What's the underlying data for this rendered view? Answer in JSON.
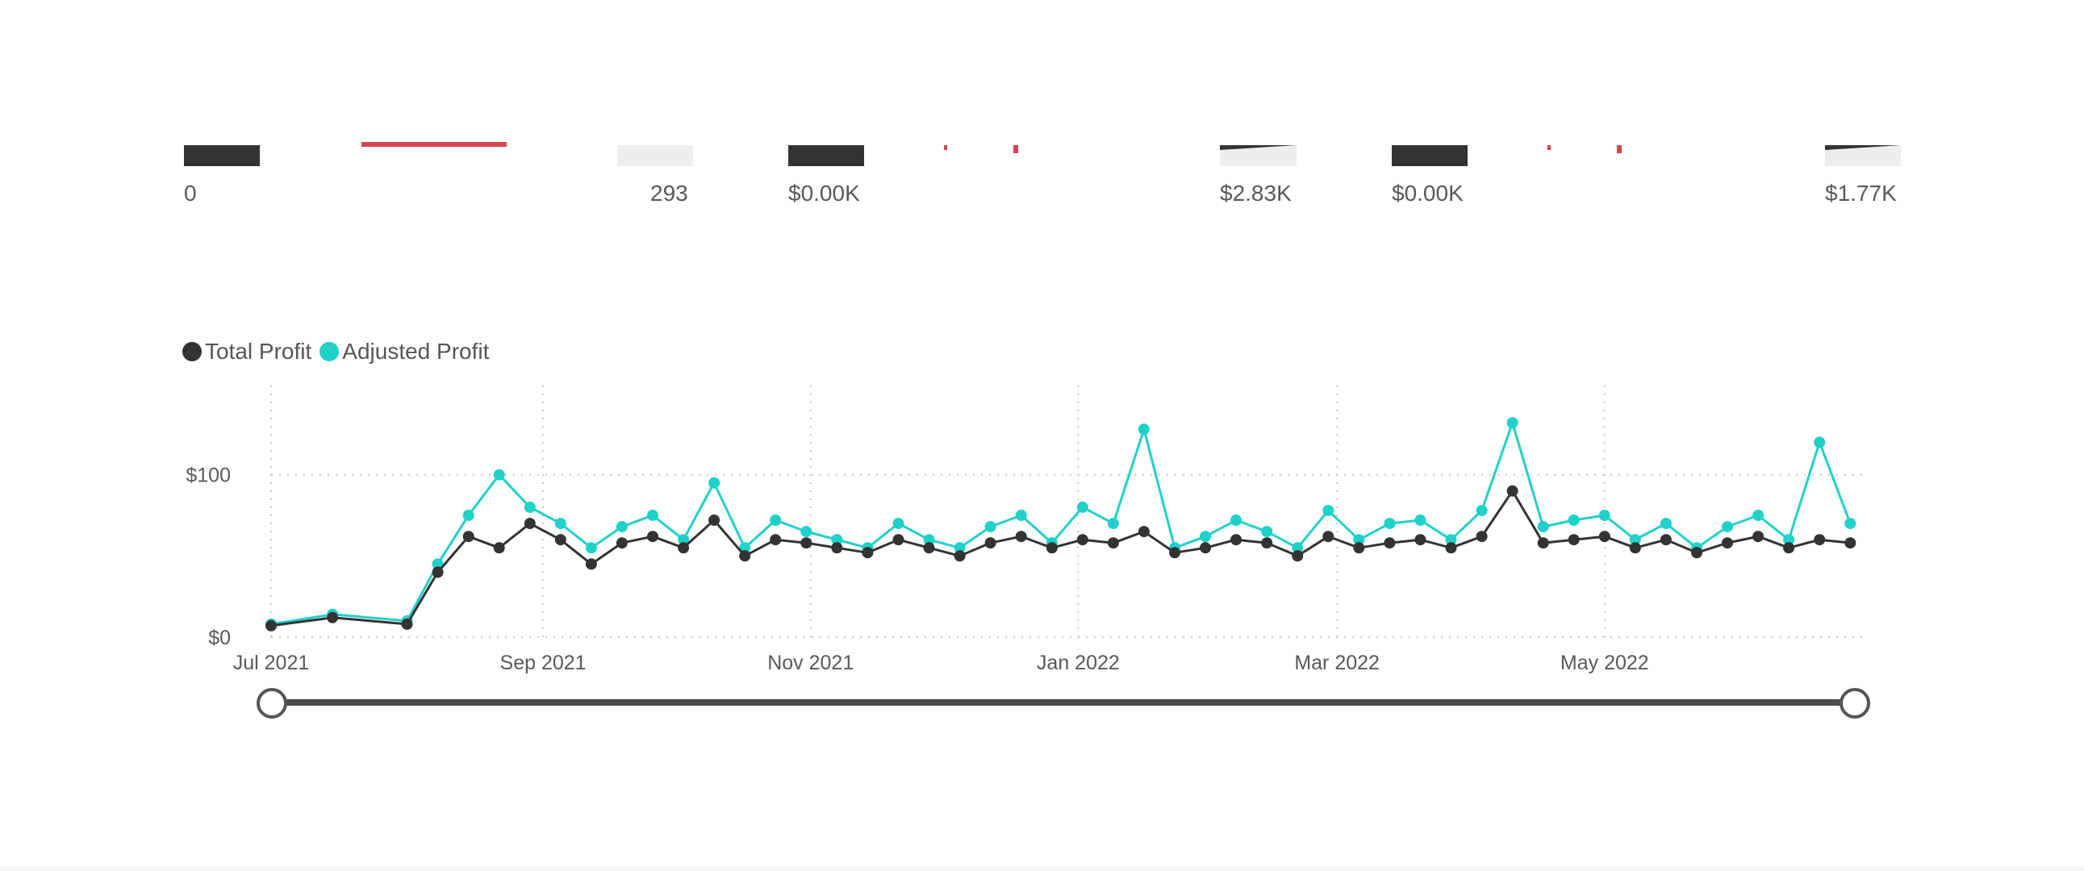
{
  "kpis": [
    {
      "label": "0"
    },
    {
      "label": "293"
    },
    {
      "label": "$0.00K"
    },
    {
      "label": "$2.83K"
    },
    {
      "label": "$0.00K"
    },
    {
      "label": "$1.77K"
    }
  ],
  "colors": {
    "total_profit": "#333333",
    "adjusted_profit": "#1fd1c8",
    "grid": "#c8c8c8",
    "accent_red": "#d64550"
  },
  "chart_data": {
    "type": "line",
    "markers": true,
    "legend_position": "top-left",
    "grid": "dotted",
    "title": "",
    "xlabel": "",
    "ylabel": "",
    "x_range": [
      "2021-07-01",
      "2022-06-30"
    ],
    "ylim": [
      0,
      150
    ],
    "x_ticks": [
      "Jul 2021",
      "Sep 2021",
      "Nov 2021",
      "Jan 2022",
      "Mar 2022",
      "May 2022"
    ],
    "x_tick_dates": [
      "2021-07-01",
      "2021-09-01",
      "2021-11-01",
      "2022-01-01",
      "2022-03-01",
      "2022-05-01"
    ],
    "y_ticks": [
      "$0",
      "$100"
    ],
    "y_tick_values": [
      0,
      100
    ],
    "series": [
      {
        "name": "Total Profit",
        "x": [
          "2021-07-01",
          "2021-07-15",
          "2021-08-01",
          "2021-08-08",
          "2021-08-15",
          "2021-08-22",
          "2021-08-29",
          "2021-09-05",
          "2021-09-12",
          "2021-09-19",
          "2021-09-26",
          "2021-10-03",
          "2021-10-10",
          "2021-10-17",
          "2021-10-24",
          "2021-10-31",
          "2021-11-07",
          "2021-11-14",
          "2021-11-21",
          "2021-11-28",
          "2021-12-05",
          "2021-12-12",
          "2021-12-19",
          "2021-12-26",
          "2022-01-02",
          "2022-01-09",
          "2022-01-16",
          "2022-01-23",
          "2022-01-30",
          "2022-02-06",
          "2022-02-13",
          "2022-02-20",
          "2022-02-27",
          "2022-03-06",
          "2022-03-13",
          "2022-03-20",
          "2022-03-27",
          "2022-04-03",
          "2022-04-10",
          "2022-04-17",
          "2022-04-24",
          "2022-05-01",
          "2022-05-08",
          "2022-05-15",
          "2022-05-22",
          "2022-05-29",
          "2022-06-05",
          "2022-06-12",
          "2022-06-19",
          "2022-06-26"
        ],
        "values": [
          7,
          12,
          8,
          40,
          62,
          55,
          70,
          60,
          45,
          58,
          62,
          55,
          72,
          50,
          60,
          58,
          55,
          52,
          60,
          55,
          50,
          58,
          62,
          55,
          60,
          58,
          65,
          52,
          55,
          60,
          58,
          50,
          62,
          55,
          58,
          60,
          55,
          62,
          90,
          58,
          60,
          62,
          55,
          60,
          52,
          58,
          62,
          55,
          60,
          58
        ]
      },
      {
        "name": "Adjusted Profit",
        "x": [
          "2021-07-01",
          "2021-07-15",
          "2021-08-01",
          "2021-08-08",
          "2021-08-15",
          "2021-08-22",
          "2021-08-29",
          "2021-09-05",
          "2021-09-12",
          "2021-09-19",
          "2021-09-26",
          "2021-10-03",
          "2021-10-10",
          "2021-10-17",
          "2021-10-24",
          "2021-10-31",
          "2021-11-07",
          "2021-11-14",
          "2021-11-21",
          "2021-11-28",
          "2021-12-05",
          "2021-12-12",
          "2021-12-19",
          "2021-12-26",
          "2022-01-02",
          "2022-01-09",
          "2022-01-16",
          "2022-01-23",
          "2022-01-30",
          "2022-02-06",
          "2022-02-13",
          "2022-02-20",
          "2022-02-27",
          "2022-03-06",
          "2022-03-13",
          "2022-03-20",
          "2022-03-27",
          "2022-04-03",
          "2022-04-10",
          "2022-04-17",
          "2022-04-24",
          "2022-05-01",
          "2022-05-08",
          "2022-05-15",
          "2022-05-22",
          "2022-05-29",
          "2022-06-05",
          "2022-06-12",
          "2022-06-19",
          "2022-06-26"
        ],
        "values": [
          8,
          14,
          10,
          45,
          75,
          100,
          80,
          70,
          55,
          68,
          75,
          60,
          95,
          55,
          72,
          65,
          60,
          55,
          70,
          60,
          55,
          68,
          75,
          58,
          80,
          70,
          128,
          55,
          62,
          72,
          65,
          55,
          78,
          60,
          70,
          72,
          60,
          78,
          132,
          68,
          72,
          75,
          60,
          70,
          55,
          68,
          75,
          60,
          120,
          70
        ]
      }
    ]
  }
}
